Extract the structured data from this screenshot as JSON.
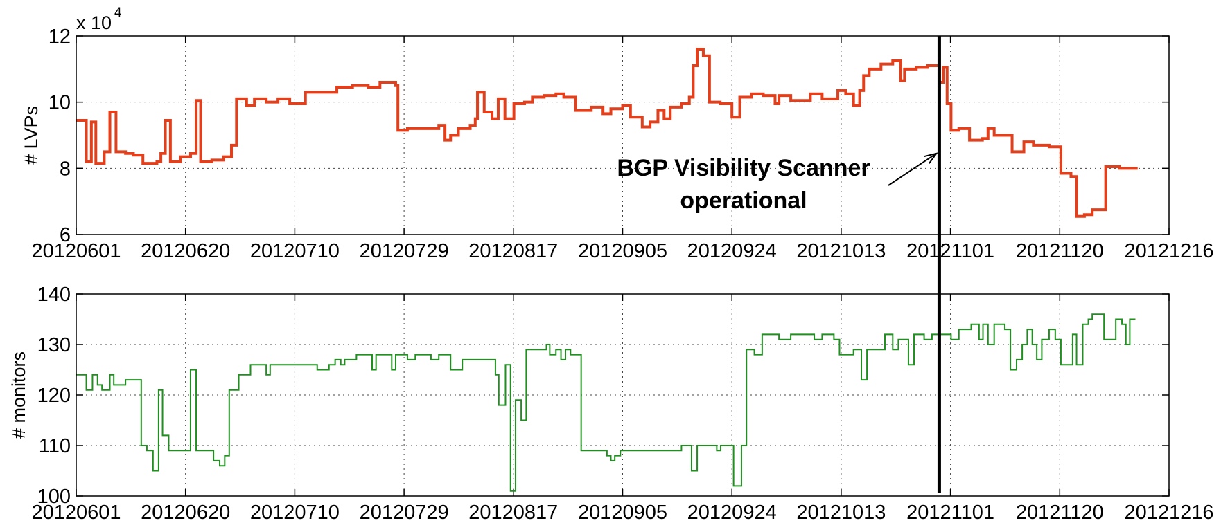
{
  "chart_data": [
    {
      "type": "line",
      "ylabel": "# LVPs",
      "multiplier": {
        "base": "x 10",
        "exponent": "4"
      },
      "x": [
        0,
        1.8,
        2.7,
        3.5,
        5.0,
        6.0,
        7.1,
        8.8,
        10.2,
        11.9,
        14.4,
        15.1,
        15.9,
        16.8,
        18.6,
        20.4,
        21.4,
        22.2,
        24.2,
        26.3,
        27.7,
        28.6,
        30.4,
        31.8,
        33.9,
        36.0,
        38.1,
        40.9,
        43.7,
        46.5,
        49.3,
        52.1,
        54.2,
        57.0,
        57.4,
        59.1,
        61.9,
        64.7,
        65.8,
        66.8,
        68.2,
        70.3,
        71.2,
        71.6,
        72.8,
        74.2,
        75.3,
        76.5,
        78.1,
        80.0,
        81.4,
        83.5,
        85.6,
        87.0,
        89.1,
        91.9,
        94.0,
        95.4,
        97.5,
        98.9,
        101.0,
        102.4,
        103.8,
        104.9,
        106.0,
        108.0,
        109.4,
        110.1,
        110.8,
        111.9,
        113.0,
        114.9,
        117.0,
        118.4,
        120.5,
        122.6,
        124.7,
        125.4,
        127.5,
        131.0,
        133.1,
        135.9,
        137.3,
        138.7,
        139.8,
        140.5,
        141.5,
        143.6,
        145.7,
        147.1,
        147.8,
        149.9,
        151.9,
        154.0,
        154.7,
        155.4,
        156.1,
        157.5,
        159.4,
        161.7,
        162.7,
        163.8,
        165.9,
        167.0,
        168.4,
        169.1,
        170.8,
        173.6,
        175.7,
        177.5,
        178.5,
        179.9,
        181.3,
        183.7,
        186.2,
        189.4
      ],
      "series": [
        {
          "name": "LVPs",
          "color": "#e2401c",
          "width": 4,
          "values": [
            9.45,
            8.2,
            9.4,
            8.15,
            8.5,
            9.7,
            8.5,
            8.45,
            8.4,
            8.15,
            8.2,
            8.45,
            9.45,
            8.2,
            8.35,
            8.45,
            10.05,
            8.2,
            8.25,
            8.35,
            8.7,
            10.1,
            9.9,
            10.1,
            10.0,
            10.1,
            9.95,
            10.3,
            10.3,
            10.45,
            10.5,
            10.45,
            10.6,
            10.5,
            9.15,
            9.2,
            9.2,
            9.3,
            8.85,
            9.0,
            9.2,
            9.3,
            9.5,
            10.3,
            9.7,
            9.5,
            10.1,
            9.5,
            9.95,
            10.0,
            10.15,
            10.2,
            10.25,
            10.15,
            9.75,
            9.85,
            9.65,
            9.8,
            9.9,
            9.55,
            9.25,
            9.4,
            9.75,
            9.5,
            9.85,
            9.95,
            10.15,
            11.1,
            11.6,
            11.4,
            10.0,
            9.95,
            9.55,
            10.15,
            10.25,
            10.2,
            9.95,
            10.2,
            10.05,
            10.25,
            10.1,
            10.35,
            10.25,
            9.9,
            10.35,
            10.8,
            11.0,
            11.15,
            11.25,
            10.65,
            11.0,
            11.05,
            11.1,
            10.6,
            11.05,
            9.95,
            9.15,
            9.2,
            8.85,
            8.9,
            9.2,
            9.0,
            9.0,
            8.5,
            8.5,
            8.8,
            8.7,
            8.65,
            7.85,
            7.75,
            6.55,
            6.6,
            6.75,
            8.05,
            8.0,
            8.0
          ]
        }
      ],
      "xlim": [
        0,
        195
      ],
      "xticks": [
        {
          "value": 0,
          "label": "20120601"
        },
        {
          "value": 19.5,
          "label": "20120620"
        },
        {
          "value": 39,
          "label": "20120710"
        },
        {
          "value": 58.5,
          "label": "20120729"
        },
        {
          "value": 78,
          "label": "20120817"
        },
        {
          "value": 97.5,
          "label": "20120905"
        },
        {
          "value": 117,
          "label": "20120924"
        },
        {
          "value": 136.5,
          "label": "20121013"
        },
        {
          "value": 156,
          "label": "20121101"
        },
        {
          "value": 175.5,
          "label": "20121120"
        },
        {
          "value": 195,
          "label": "20121216"
        }
      ],
      "ylim": [
        6,
        12
      ],
      "yticks": [
        6,
        8,
        10,
        12
      ],
      "grid": true,
      "marker_x": 154.0,
      "annotation": {
        "text": [
          "BGP Visibility Scanner",
          "operational"
        ],
        "arrow_to": [
          153.5,
          8.45
        ]
      }
    },
    {
      "type": "line",
      "ylabel": "# monitors",
      "x": [
        0,
        1.8,
        2.9,
        3.8,
        4.6,
        6.0,
        6.7,
        8.8,
        11.6,
        12.6,
        13.7,
        14.7,
        15.4,
        16.5,
        20.0,
        20.4,
        21.4,
        23.9,
        24.5,
        25.6,
        26.5,
        27.3,
        29.0,
        31.1,
        33.9,
        34.6,
        42.3,
        43.0,
        45.1,
        46.2,
        47.2,
        47.9,
        50.0,
        52.8,
        53.5,
        56.3,
        57.0,
        59.1,
        60.5,
        63.3,
        64.7,
        66.8,
        68.9,
        73.1,
        74.8,
        75.4,
        76.6,
        77.5,
        78.4,
        79.4,
        80.3,
        82.8,
        83.9,
        84.5,
        85.6,
        86.5,
        87.3,
        88.2,
        90.1,
        94.0,
        94.7,
        95.4,
        96.1,
        97.1,
        106.6,
        108.0,
        109.8,
        110.8,
        113.6,
        114.3,
        115.0,
        117.3,
        118.7,
        119.6,
        121.0,
        122.4,
        125.4,
        127.5,
        131.7,
        133.1,
        135.2,
        136.2,
        138.7,
        140.1,
        141.1,
        143.6,
        144.3,
        145.7,
        146.7,
        148.5,
        149.5,
        151.3,
        152.7,
        156.1,
        157.5,
        159.7,
        161.1,
        161.8,
        162.7,
        163.8,
        165.7,
        166.7,
        167.8,
        168.8,
        169.7,
        170.6,
        171.4,
        172.3,
        173.6,
        174.7,
        175.7,
        177.8,
        178.5,
        179.6,
        180.6,
        181.3,
        183.4,
        185.5,
        186.6,
        187.3,
        188.0,
        189.0
      ],
      "series": [
        {
          "name": "monitors",
          "color": "#1f8f1f",
          "width": 2,
          "values": [
            124,
            121,
            124,
            122,
            121,
            124,
            122,
            123,
            110,
            109,
            105,
            121,
            112,
            109,
            109,
            125,
            109,
            109,
            107,
            106,
            108,
            121,
            124,
            126,
            124,
            126,
            126,
            125,
            126,
            127,
            126,
            127,
            128,
            125,
            128,
            125,
            128,
            127,
            128,
            127,
            128,
            125,
            127,
            127,
            124,
            118,
            126,
            101,
            119,
            115,
            129,
            129,
            130,
            128,
            129,
            127,
            129,
            128,
            109,
            109,
            108,
            107,
            108,
            109,
            109,
            110,
            105,
            110,
            110,
            109,
            110,
            102,
            110,
            129,
            128,
            132,
            131,
            132,
            131,
            132,
            131,
            128,
            129,
            123,
            129,
            129,
            132,
            129,
            131,
            126,
            132,
            131,
            132,
            131,
            133,
            134,
            131,
            134,
            130,
            134,
            133,
            125,
            127,
            130,
            133,
            130,
            127,
            131,
            133,
            131,
            126,
            132,
            126,
            134,
            135,
            136,
            131,
            135,
            134,
            130,
            135,
            135
          ]
        }
      ],
      "xlim": [
        0,
        195
      ],
      "xticks": [
        {
          "value": 0,
          "label": "20120601"
        },
        {
          "value": 19.5,
          "label": "20120620"
        },
        {
          "value": 39,
          "label": "20120710"
        },
        {
          "value": 58.5,
          "label": "20120729"
        },
        {
          "value": 78,
          "label": "20120817"
        },
        {
          "value": 97.5,
          "label": "20120905"
        },
        {
          "value": 117,
          "label": "20120924"
        },
        {
          "value": 136.5,
          "label": "20121013"
        },
        {
          "value": 156,
          "label": "20121101"
        },
        {
          "value": 175.5,
          "label": "20121120"
        },
        {
          "value": 195,
          "label": "20121216"
        }
      ],
      "ylim": [
        100,
        140
      ],
      "yticks": [
        100,
        110,
        120,
        130,
        140
      ],
      "grid": true
    }
  ]
}
